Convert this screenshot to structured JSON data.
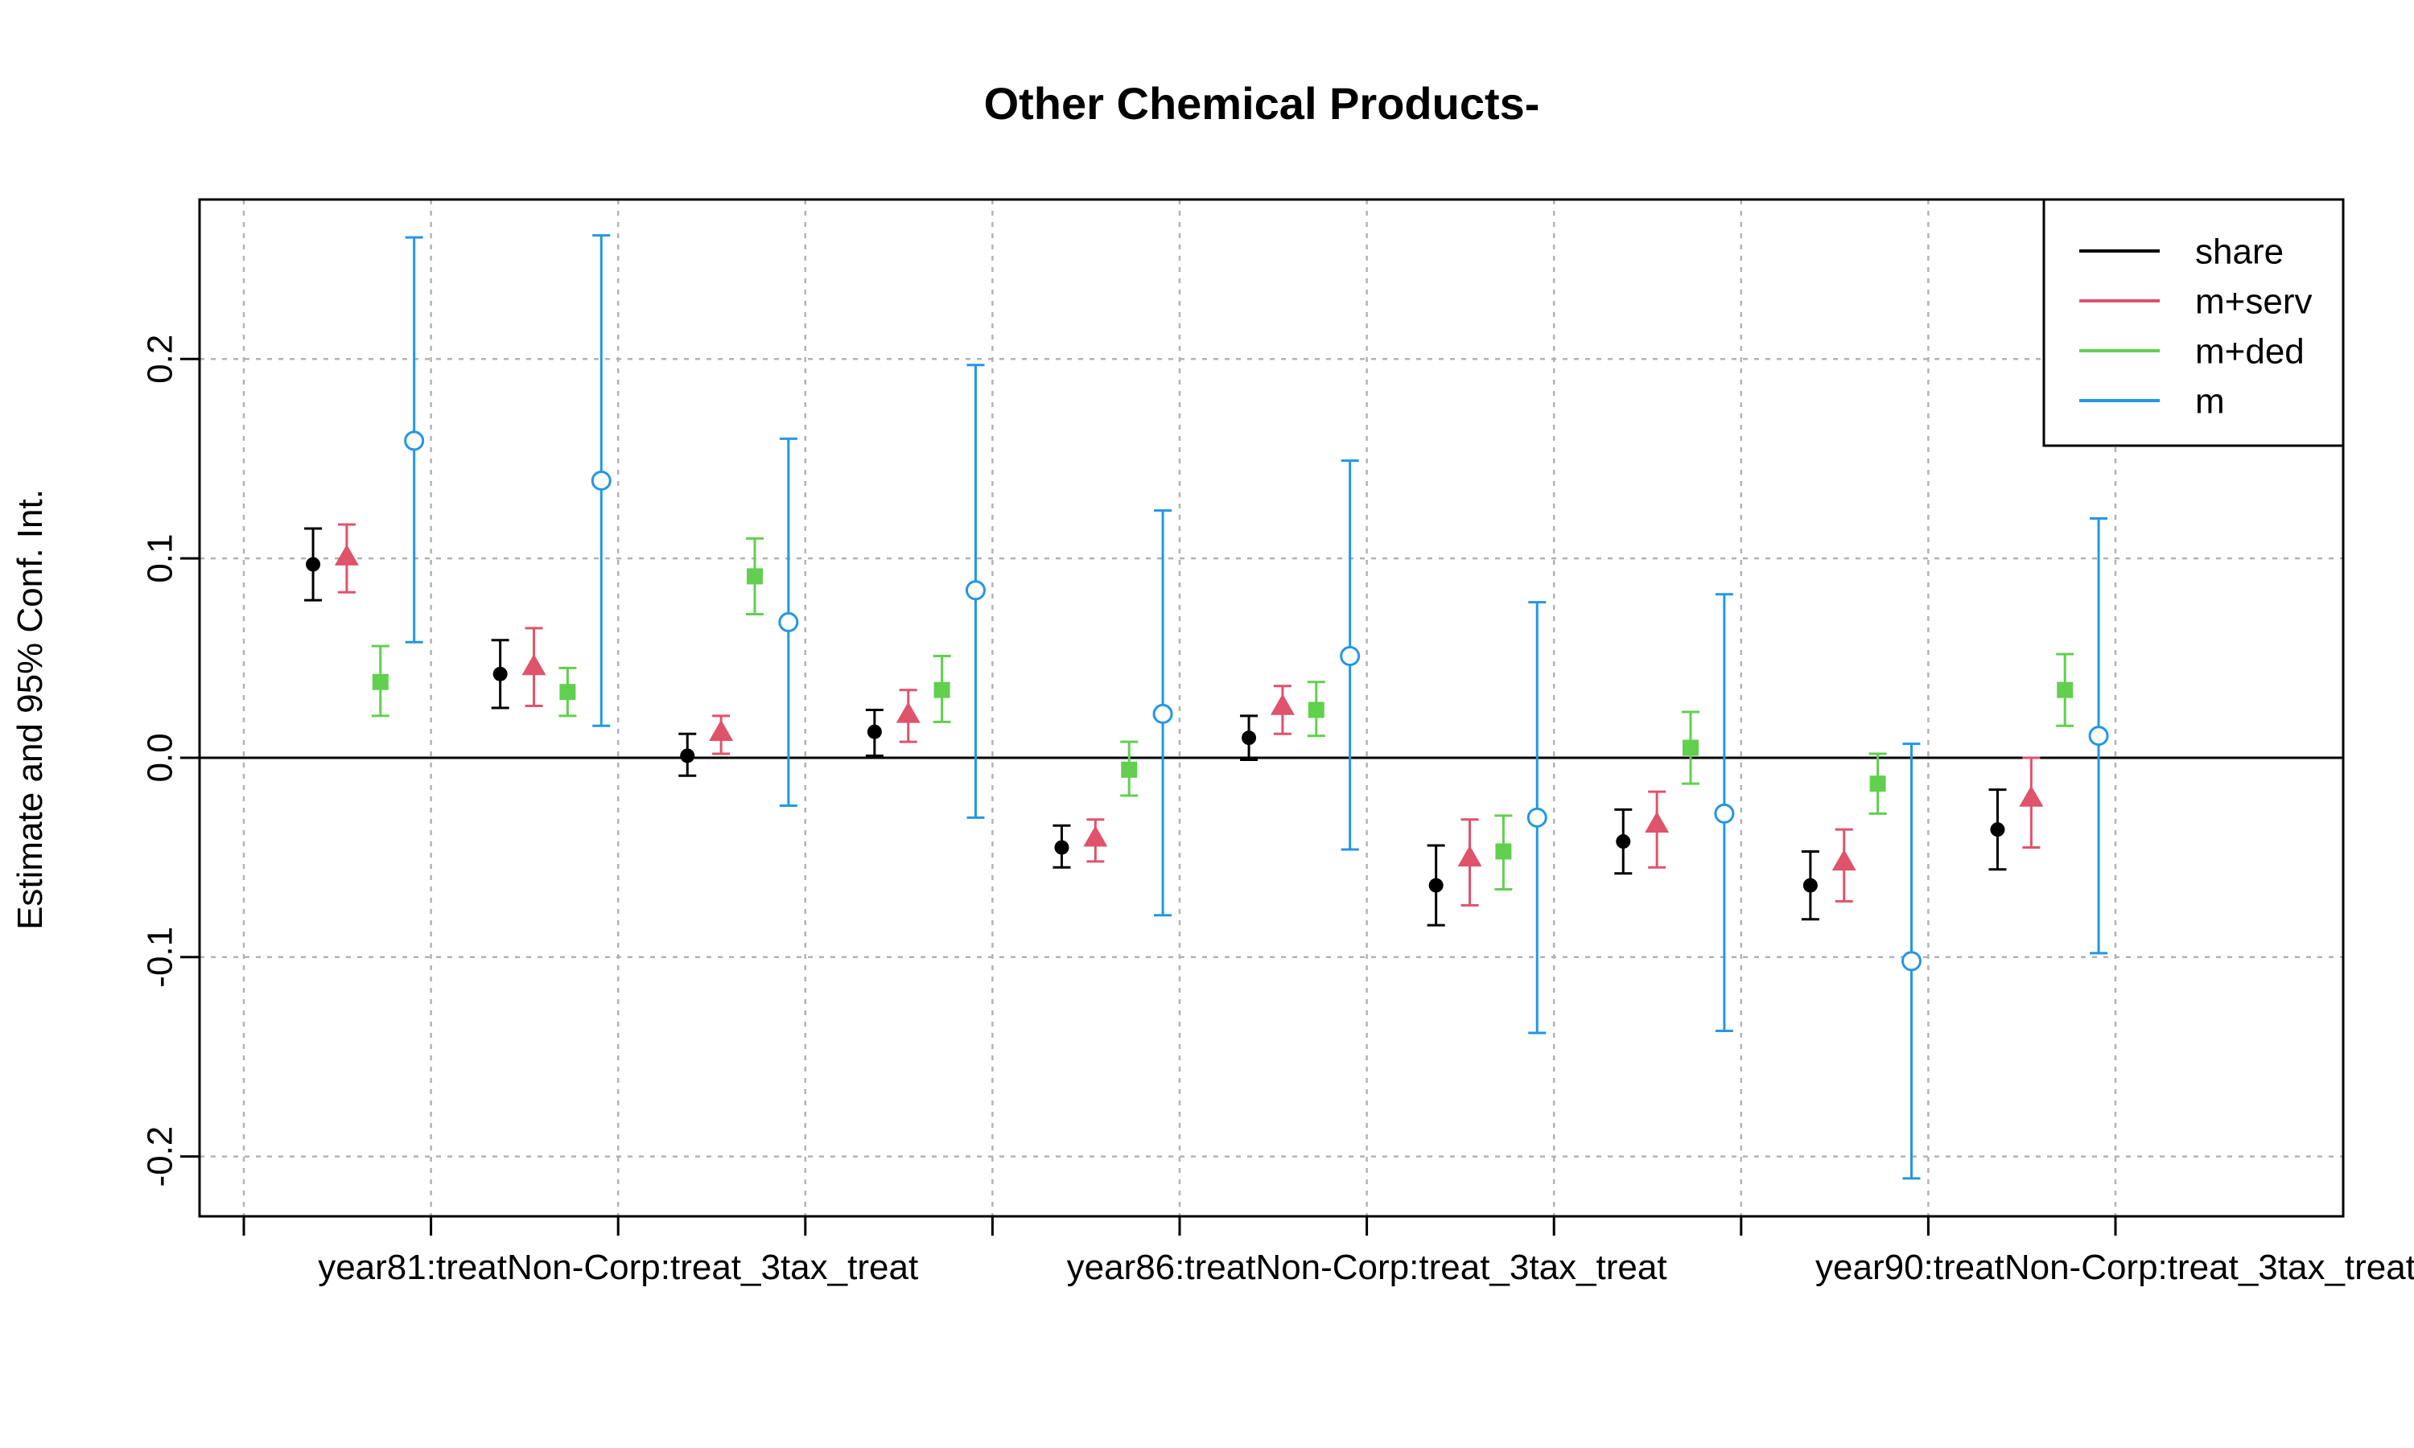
{
  "chart_data": {
    "type": "scatter",
    "title": "Other Chemical Products-",
    "xlabel": "",
    "ylabel": "Estimate and 95% Conf. Int.",
    "ylim": [
      -0.23,
      0.28
    ],
    "yticks": [
      "-0.2",
      "-0.1",
      "0.0",
      "0.1",
      "0.2"
    ],
    "ytick_values": [
      -0.2,
      -0.1,
      0.0,
      0.1,
      0.2
    ],
    "xtick_labels": [
      "year81:treatNon-Corp:treat_3tax_treat",
      "year86:treatNon-Corp:treat_3tax_treat",
      "year90:treatNon-Corp:treat_3tax_treat"
    ],
    "xtick_label_slots": [
      2,
      6,
      10
    ],
    "slots": 11,
    "grid": true,
    "reference_line": 0,
    "legend_position": "top-right",
    "series": [
      {
        "name": "share",
        "color": "#000000",
        "marker": "filled-circle",
        "estimates": [
          0.097,
          0.042,
          0.001,
          0.013,
          -0.045,
          0.01,
          -0.064,
          -0.042,
          -0.064,
          -0.036
        ],
        "lower": [
          0.079,
          0.025,
          -0.009,
          0.001,
          -0.055,
          -0.001,
          -0.084,
          -0.058,
          -0.081,
          -0.056
        ],
        "upper": [
          0.115,
          0.059,
          0.012,
          0.024,
          -0.034,
          0.021,
          -0.044,
          -0.026,
          -0.047,
          -0.016
        ]
      },
      {
        "name": "m+serv",
        "color": "#DF536B",
        "marker": "filled-triangle",
        "estimates": [
          0.101,
          0.046,
          0.013,
          0.022,
          -0.04,
          0.026,
          -0.05,
          -0.033,
          -0.052,
          -0.02
        ],
        "lower": [
          0.083,
          0.026,
          0.002,
          0.008,
          -0.052,
          0.012,
          -0.074,
          -0.055,
          -0.072,
          -0.045
        ],
        "upper": [
          0.117,
          0.065,
          0.021,
          0.034,
          -0.031,
          0.036,
          -0.031,
          -0.017,
          -0.036,
          0.0
        ]
      },
      {
        "name": "m+ded",
        "color": "#61D04F",
        "marker": "filled-square",
        "estimates": [
          0.038,
          0.033,
          0.091,
          0.034,
          -0.006,
          0.024,
          -0.047,
          0.005,
          -0.013,
          0.034
        ],
        "lower": [
          0.021,
          0.021,
          0.072,
          0.018,
          -0.019,
          0.011,
          -0.066,
          -0.013,
          -0.028,
          0.016
        ],
        "upper": [
          0.056,
          0.045,
          0.11,
          0.051,
          0.008,
          0.038,
          -0.029,
          0.023,
          0.002,
          0.052
        ]
      },
      {
        "name": "m",
        "color": "#2297E6",
        "marker": "open-circle",
        "estimates": [
          0.159,
          0.139,
          0.068,
          0.084,
          0.022,
          0.051,
          -0.03,
          -0.028,
          -0.102,
          0.011
        ],
        "lower": [
          0.058,
          0.016,
          -0.024,
          -0.03,
          -0.079,
          -0.046,
          -0.138,
          -0.137,
          -0.211,
          -0.098
        ],
        "upper": [
          0.261,
          0.262,
          0.16,
          0.197,
          0.124,
          0.149,
          0.078,
          0.082,
          0.007,
          0.12
        ]
      }
    ]
  }
}
